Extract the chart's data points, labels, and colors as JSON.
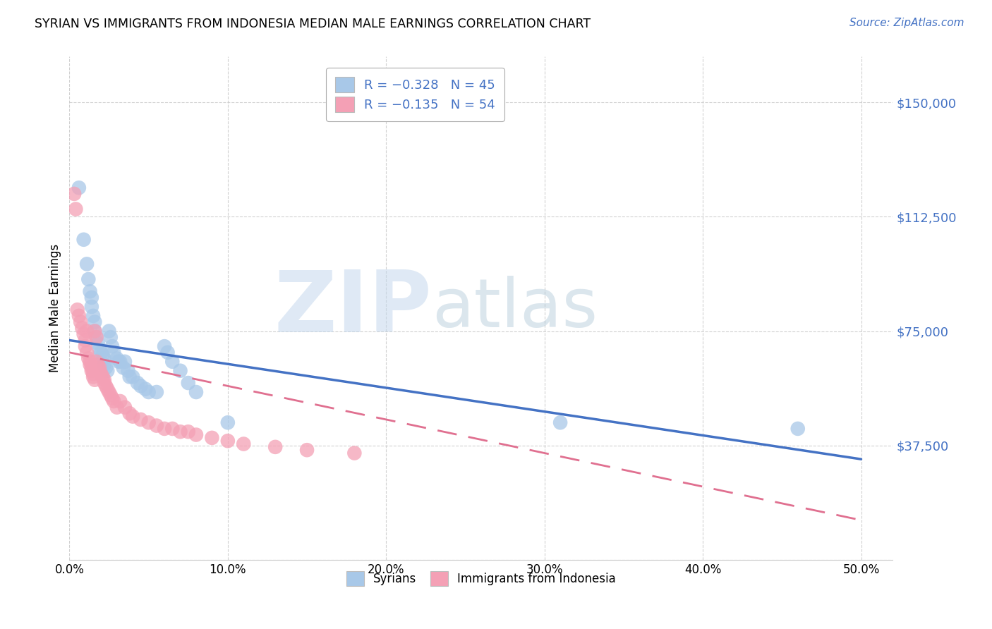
{
  "title": "SYRIAN VS IMMIGRANTS FROM INDONESIA MEDIAN MALE EARNINGS CORRELATION CHART",
  "source": "Source: ZipAtlas.com",
  "ylabel": "Median Male Earnings",
  "yticks": [
    0,
    37500,
    75000,
    112500,
    150000
  ],
  "ytick_labels": [
    "",
    "$37,500",
    "$75,000",
    "$112,500",
    "$150,000"
  ],
  "xticks": [
    0.0,
    0.1,
    0.2,
    0.3,
    0.4,
    0.5
  ],
  "xtick_labels": [
    "0.0%",
    "10.0%",
    "20.0%",
    "30.0%",
    "40.0%",
    "50.0%"
  ],
  "xlim": [
    0.0,
    0.52
  ],
  "ylim": [
    15000,
    165000
  ],
  "syrians_R": "-0.328",
  "syrians_N": "45",
  "indonesia_R": "-0.135",
  "indonesia_N": "54",
  "syrians_color": "#a8c8e8",
  "indonesia_color": "#f4a0b5",
  "syrians_line_color": "#4472c4",
  "indonesia_line_color": "#e07090",
  "background_color": "#ffffff",
  "watermark_zip": "ZIP",
  "watermark_atlas": "atlas",
  "syrians_x": [
    0.006,
    0.009,
    0.011,
    0.012,
    0.013,
    0.014,
    0.014,
    0.015,
    0.016,
    0.016,
    0.017,
    0.018,
    0.019,
    0.02,
    0.021,
    0.022,
    0.022,
    0.023,
    0.024,
    0.025,
    0.026,
    0.027,
    0.028,
    0.03,
    0.031,
    0.032,
    0.034,
    0.035,
    0.037,
    0.038,
    0.04,
    0.043,
    0.045,
    0.048,
    0.05,
    0.055,
    0.06,
    0.062,
    0.065,
    0.07,
    0.075,
    0.08,
    0.1,
    0.31,
    0.46
  ],
  "syrians_y": [
    122000,
    105000,
    97000,
    92000,
    88000,
    86000,
    83000,
    80000,
    78000,
    75000,
    73000,
    71000,
    69000,
    68000,
    67000,
    66000,
    64000,
    63000,
    62000,
    75000,
    73000,
    70000,
    68000,
    66000,
    65000,
    65000,
    63000,
    65000,
    62000,
    60000,
    60000,
    58000,
    57000,
    56000,
    55000,
    55000,
    70000,
    68000,
    65000,
    62000,
    58000,
    55000,
    45000,
    45000,
    43000
  ],
  "indonesia_x": [
    0.003,
    0.004,
    0.005,
    0.006,
    0.007,
    0.008,
    0.009,
    0.01,
    0.01,
    0.011,
    0.011,
    0.012,
    0.013,
    0.013,
    0.014,
    0.014,
    0.015,
    0.015,
    0.016,
    0.016,
    0.017,
    0.017,
    0.018,
    0.019,
    0.019,
    0.02,
    0.021,
    0.022,
    0.022,
    0.023,
    0.024,
    0.025,
    0.026,
    0.027,
    0.028,
    0.03,
    0.032,
    0.035,
    0.038,
    0.04,
    0.045,
    0.05,
    0.055,
    0.06,
    0.065,
    0.07,
    0.075,
    0.08,
    0.09,
    0.1,
    0.11,
    0.13,
    0.15,
    0.18
  ],
  "indonesia_y": [
    120000,
    115000,
    82000,
    80000,
    78000,
    76000,
    74000,
    72000,
    70000,
    75000,
    68000,
    66000,
    65000,
    64000,
    63000,
    62000,
    61000,
    60000,
    59000,
    75000,
    73000,
    65000,
    64000,
    63000,
    62000,
    61000,
    60000,
    59000,
    58000,
    57000,
    56000,
    55000,
    54000,
    53000,
    52000,
    50000,
    52000,
    50000,
    48000,
    47000,
    46000,
    45000,
    44000,
    43000,
    43000,
    42000,
    42000,
    41000,
    40000,
    39000,
    38000,
    37000,
    36000,
    35000
  ],
  "syr_line_x0": 0.0,
  "syr_line_x1": 0.5,
  "syr_line_y0": 72000,
  "syr_line_y1": 33000,
  "ind_line_x0": 0.0,
  "ind_line_x1": 0.5,
  "ind_line_y0": 68000,
  "ind_line_y1": 13000
}
